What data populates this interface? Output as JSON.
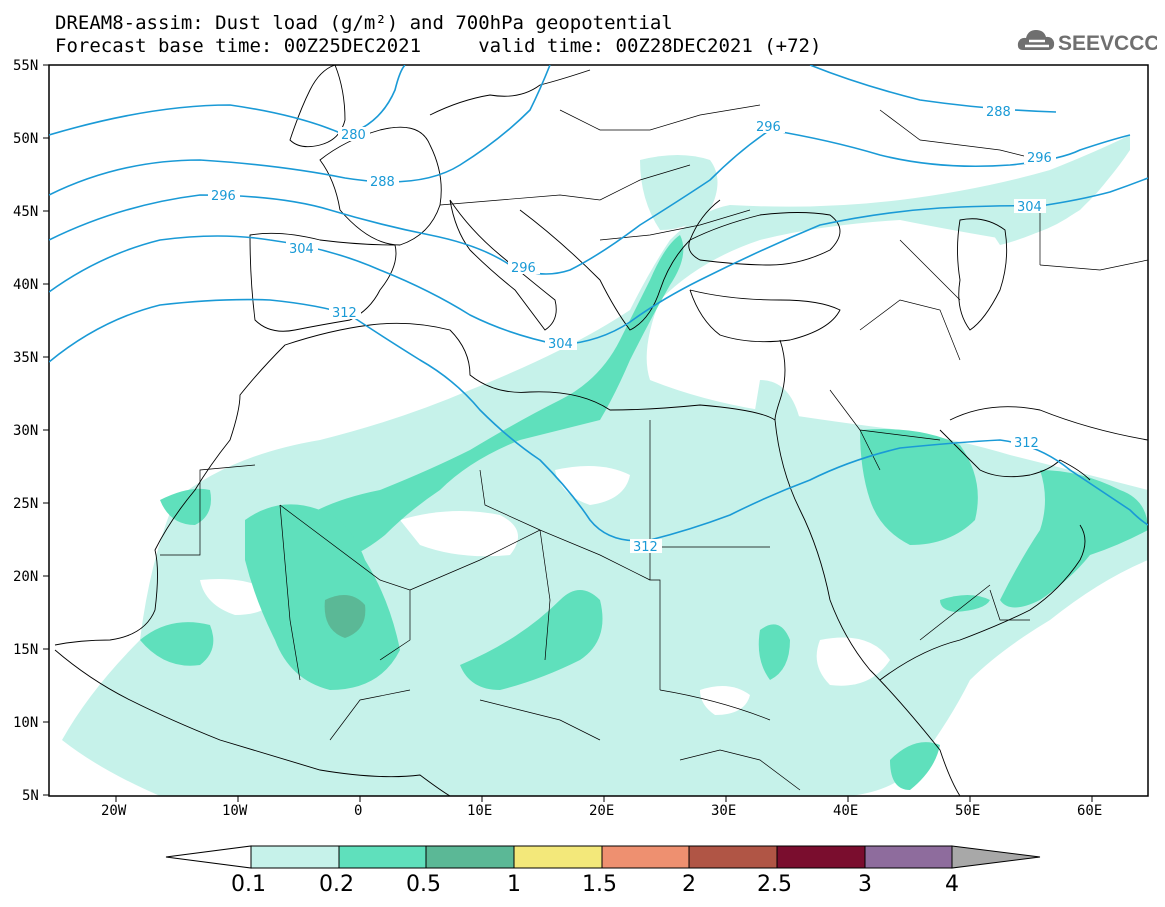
{
  "header": {
    "title_line1": "DREAM8-assim: Dust load (g/m²) and 700hPa geopotential",
    "title_line2": "Forecast base time: 00Z25DEC2021     valid time: 00Z28DEC2021 (+72)"
  },
  "logo": {
    "text": "SEEVCCC",
    "icon": "cloud-icon"
  },
  "map": {
    "lat_labels": [
      "55N",
      "50N",
      "45N",
      "40N",
      "35N",
      "30N",
      "25N",
      "20N",
      "15N",
      "10N",
      "5N"
    ],
    "lon_labels": [
      "20W",
      "10W",
      "0",
      "10E",
      "20E",
      "30E",
      "40E",
      "50E",
      "60E"
    ],
    "extent": {
      "lon": [
        -25,
        65
      ],
      "lat": [
        5,
        55
      ]
    },
    "contour_color": "#1a9ad6",
    "contour_labels": [
      "280",
      "288",
      "296",
      "304",
      "312",
      "296",
      "304",
      "312",
      "288",
      "296",
      "304",
      "312"
    ]
  },
  "colorbar": {
    "levels": [
      "0.1",
      "0.2",
      "0.5",
      "1",
      "1.5",
      "2",
      "2.5",
      "3",
      "4"
    ],
    "colors": [
      "#ffffff",
      "#c6f2ea",
      "#5fe0bc",
      "#5bb896",
      "#f3e87a",
      "#ee9070",
      "#b05545",
      "#7a0d2e",
      "#8e6c9d",
      "#a8a8a8"
    ]
  },
  "chart_data": {
    "type": "heatmap",
    "title": "DREAM8-assim: Dust load (g/m²) and 700hPa geopotential",
    "variable": "Dust load (g/m²)",
    "overlay": "700hPa geopotential (dam)",
    "contour_levels_dam": [
      280,
      288,
      296,
      304,
      312
    ],
    "color_levels": [
      0.1,
      0.2,
      0.5,
      1,
      1.5,
      2,
      2.5,
      3,
      4
    ],
    "xlim": [
      -25,
      65
    ],
    "ylim": [
      5,
      55
    ],
    "base_time": "00Z25DEC2021",
    "valid_time": "00Z28DEC2021",
    "lead_hours": 72
  }
}
